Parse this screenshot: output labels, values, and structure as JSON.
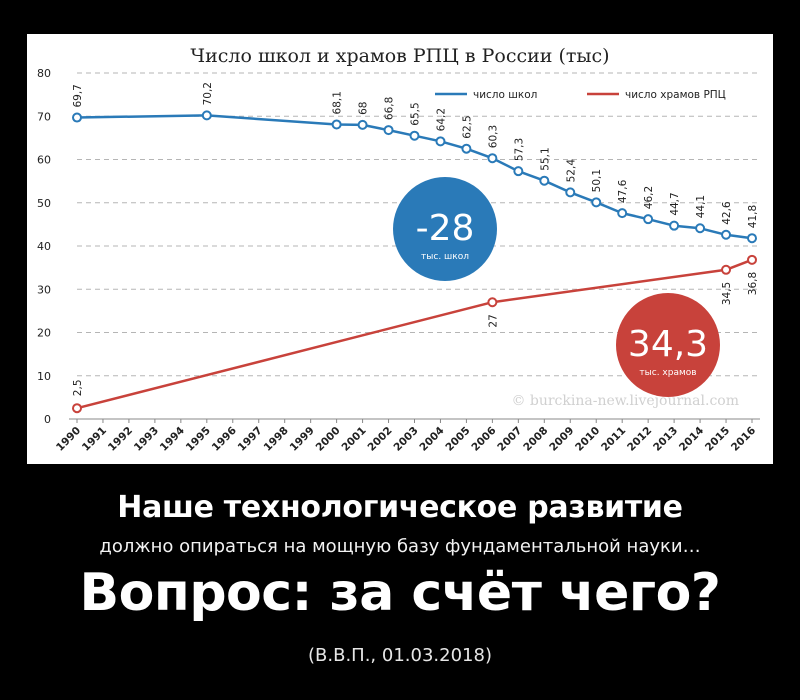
{
  "chart_data": {
    "type": "line",
    "title": "Число школ и храмов РПЦ в России (тыс)",
    "x": [
      "1990",
      "1991",
      "1992",
      "1993",
      "1994",
      "1995",
      "1996",
      "1997",
      "1998",
      "1999",
      "2000",
      "2001",
      "2002",
      "2003",
      "2004",
      "2005",
      "2006",
      "2007",
      "2008",
      "2009",
      "2010",
      "2011",
      "2012",
      "2013",
      "2014",
      "2015",
      "2016"
    ],
    "ylim": [
      0,
      80
    ],
    "yticks": [
      "0",
      "10",
      "20",
      "30",
      "40",
      "50",
      "60",
      "70",
      "80"
    ],
    "grid": true,
    "legend_position": "top-right",
    "series": [
      {
        "name": "число школ",
        "color": "#2a7ab8",
        "points": [
          {
            "x": "1990",
            "y": 69.7,
            "label": "69,7"
          },
          {
            "x": "1995",
            "y": 70.2,
            "label": "70,2"
          },
          {
            "x": "2000",
            "y": 68.1,
            "label": "68,1"
          },
          {
            "x": "2001",
            "y": 68.0,
            "label": "68"
          },
          {
            "x": "2002",
            "y": 66.8,
            "label": "66,8"
          },
          {
            "x": "2003",
            "y": 65.5,
            "label": "65,5"
          },
          {
            "x": "2004",
            "y": 64.2,
            "label": "64,2"
          },
          {
            "x": "2005",
            "y": 62.5,
            "label": "62,5"
          },
          {
            "x": "2006",
            "y": 60.3,
            "label": "60,3"
          },
          {
            "x": "2007",
            "y": 57.3,
            "label": "57,3"
          },
          {
            "x": "2008",
            "y": 55.1,
            "label": "55,1"
          },
          {
            "x": "2009",
            "y": 52.4,
            "label": "52,4"
          },
          {
            "x": "2010",
            "y": 50.1,
            "label": "50,1"
          },
          {
            "x": "2011",
            "y": 47.6,
            "label": "47,6"
          },
          {
            "x": "2012",
            "y": 46.2,
            "label": "46,2"
          },
          {
            "x": "2013",
            "y": 44.7,
            "label": "44,7"
          },
          {
            "x": "2014",
            "y": 44.1,
            "label": "44,1"
          },
          {
            "x": "2015",
            "y": 42.6,
            "label": "42,6"
          },
          {
            "x": "2016",
            "y": 41.8,
            "label": "41,8"
          }
        ]
      },
      {
        "name": "число храмов РПЦ",
        "color": "#c8423b",
        "points": [
          {
            "x": "1990",
            "y": 2.5,
            "label": "2,5"
          },
          {
            "x": "2006",
            "y": 27,
            "label": "27"
          },
          {
            "x": "2015",
            "y": 34.5,
            "label": "34,5"
          },
          {
            "x": "2016",
            "y": 36.8,
            "label": "36,8"
          }
        ]
      }
    ],
    "annotations": [
      {
        "value": "-28",
        "sub": "тыс. школ",
        "color": "#2a7ab8"
      },
      {
        "value": "34,3",
        "sub": "тыс. храмов",
        "color": "#c8423b"
      }
    ],
    "watermark": "© burckina-new.livejournal.com"
  },
  "caption": {
    "line1": "Наше технологическое развитие",
    "line2": "должно опираться на мощную базу фундаментальной науки…",
    "line3": "Вопрос: за счёт чего?",
    "line4": "(В.В.П., 01.03.2018)"
  }
}
